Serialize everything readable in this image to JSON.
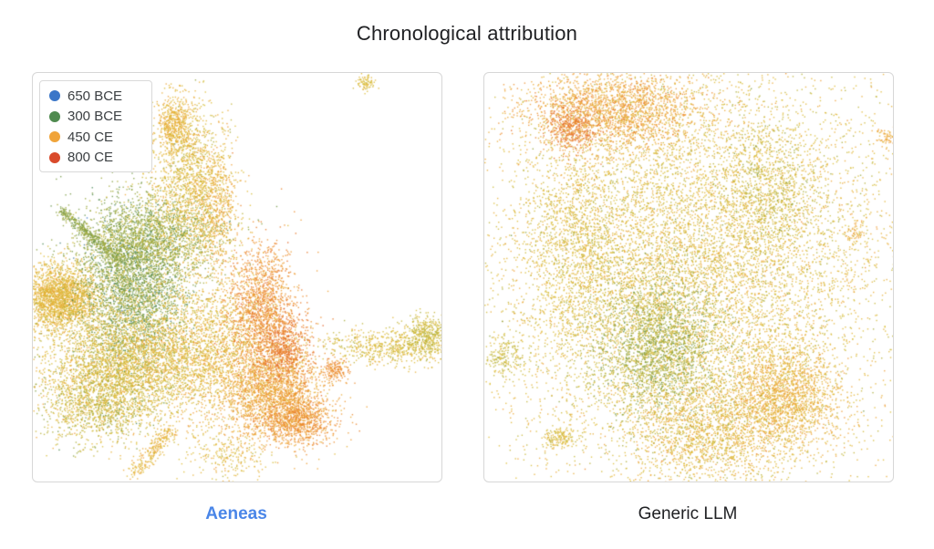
{
  "title": "Chronological attribution",
  "legend": {
    "items": [
      {
        "label": "650 BCE",
        "color": "#3a76c8"
      },
      {
        "label": "300 BCE",
        "color": "#4f8a4f"
      },
      {
        "label": "450 CE",
        "color": "#f0a43a"
      },
      {
        "label": "800 CE",
        "color": "#d94a2b"
      }
    ]
  },
  "panels": [
    {
      "caption": "Aeneas",
      "caption_color": "#4a86e8"
    },
    {
      "caption": "Generic LLM",
      "caption_color": "#202124"
    }
  ],
  "chart_data": [
    {
      "type": "scatter",
      "title": "",
      "panel_caption": "Aeneas",
      "xlabel": "",
      "ylabel": "",
      "grid": false,
      "legend_position": "top-left",
      "color_scale": {
        "stops": [
          {
            "label": "650 BCE",
            "color": "#3a76c8"
          },
          {
            "label": "300 BCE",
            "color": "#4f8a4f"
          },
          {
            "label": "450 CE",
            "color": "#f0a43a"
          },
          {
            "label": "800 CE",
            "color": "#d94a2b"
          }
        ]
      }
    },
    {
      "type": "scatter",
      "title": "",
      "panel_caption": "Generic LLM",
      "xlabel": "",
      "ylabel": "",
      "grid": false,
      "legend_position": "none",
      "color_scale": {
        "stops": [
          {
            "label": "650 BCE",
            "color": "#3a76c8"
          },
          {
            "label": "300 BCE",
            "color": "#4f8a4f"
          },
          {
            "label": "450 CE",
            "color": "#f0a43a"
          },
          {
            "label": "800 CE",
            "color": "#d94a2b"
          }
        ]
      }
    }
  ]
}
